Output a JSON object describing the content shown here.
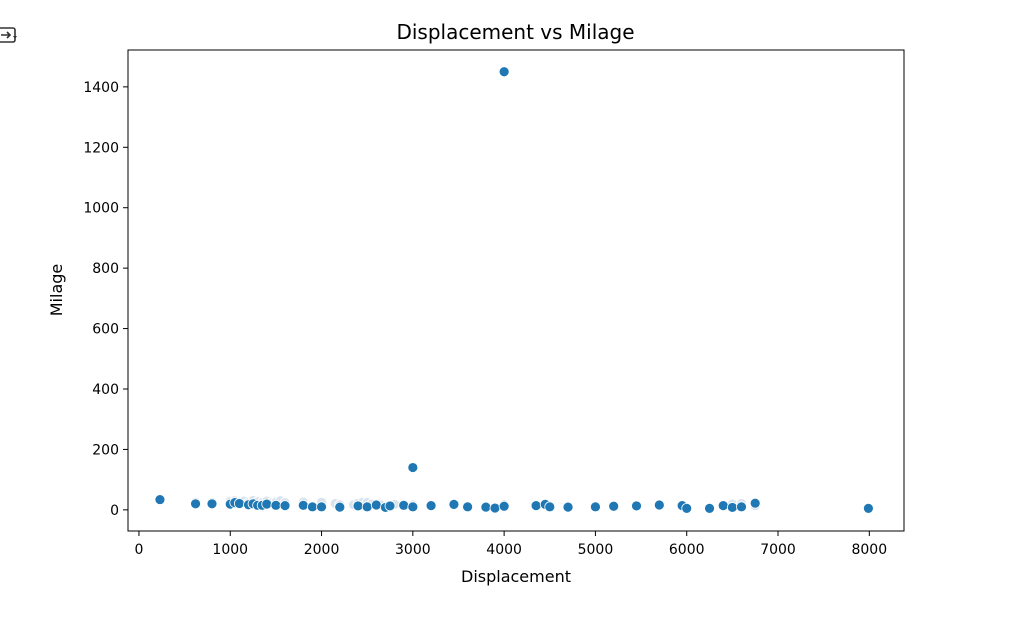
{
  "output_icon": "output-toggle-icon",
  "chart_data": {
    "type": "scatter",
    "title": "Displacement vs Milage",
    "xlabel": "Displacement",
    "ylabel": "Milage",
    "xlim": [
      -120,
      8380
    ],
    "ylim": [
      -70,
      1522
    ],
    "xticks": [
      0,
      1000,
      2000,
      3000,
      4000,
      5000,
      6000,
      7000,
      8000
    ],
    "yticks": [
      0,
      200,
      400,
      600,
      800,
      1000,
      1200,
      1400
    ],
    "grid": false,
    "legend": "none",
    "colors": {
      "point": "#1f77b4",
      "point_edge": "#ffffff",
      "faint_point": "#d9e3ee"
    },
    "faint_points": [
      {
        "x": 620,
        "y": 25
      },
      {
        "x": 800,
        "y": 25
      },
      {
        "x": 1000,
        "y": 28
      },
      {
        "x": 1050,
        "y": 30
      },
      {
        "x": 1100,
        "y": 26
      },
      {
        "x": 1150,
        "y": 29
      },
      {
        "x": 1200,
        "y": 24
      },
      {
        "x": 1250,
        "y": 31
      },
      {
        "x": 1300,
        "y": 27
      },
      {
        "x": 1350,
        "y": 24
      },
      {
        "x": 1400,
        "y": 29
      },
      {
        "x": 1450,
        "y": 23
      },
      {
        "x": 1500,
        "y": 26
      },
      {
        "x": 1550,
        "y": 30
      },
      {
        "x": 1600,
        "y": 24
      },
      {
        "x": 1800,
        "y": 26
      },
      {
        "x": 2000,
        "y": 25
      },
      {
        "x": 2150,
        "y": 21
      },
      {
        "x": 2200,
        "y": 17
      },
      {
        "x": 2350,
        "y": 17
      },
      {
        "x": 2400,
        "y": 22
      },
      {
        "x": 2450,
        "y": 25
      },
      {
        "x": 2500,
        "y": 24
      },
      {
        "x": 2550,
        "y": 19
      },
      {
        "x": 2650,
        "y": 16
      },
      {
        "x": 2800,
        "y": 18
      },
      {
        "x": 2900,
        "y": 15
      },
      {
        "x": 3000,
        "y": 16
      },
      {
        "x": 4000,
        "y": 17
      },
      {
        "x": 4500,
        "y": 14
      },
      {
        "x": 6500,
        "y": 19
      },
      {
        "x": 6600,
        "y": 21
      },
      {
        "x": 6750,
        "y": 14
      }
    ],
    "points": [
      {
        "x": 230,
        "y": 34
      },
      {
        "x": 620,
        "y": 20
      },
      {
        "x": 800,
        "y": 20
      },
      {
        "x": 1000,
        "y": 19
      },
      {
        "x": 1050,
        "y": 24
      },
      {
        "x": 1100,
        "y": 21
      },
      {
        "x": 1200,
        "y": 17
      },
      {
        "x": 1250,
        "y": 20
      },
      {
        "x": 1300,
        "y": 15
      },
      {
        "x": 1350,
        "y": 15
      },
      {
        "x": 1400,
        "y": 19
      },
      {
        "x": 1500,
        "y": 15
      },
      {
        "x": 1600,
        "y": 14
      },
      {
        "x": 1800,
        "y": 15
      },
      {
        "x": 1900,
        "y": 10
      },
      {
        "x": 2000,
        "y": 10
      },
      {
        "x": 2200,
        "y": 9
      },
      {
        "x": 2400,
        "y": 13
      },
      {
        "x": 2500,
        "y": 10
      },
      {
        "x": 2600,
        "y": 16
      },
      {
        "x": 2700,
        "y": 8
      },
      {
        "x": 2750,
        "y": 13
      },
      {
        "x": 2900,
        "y": 15
      },
      {
        "x": 3000,
        "y": 140
      },
      {
        "x": 3000,
        "y": 10
      },
      {
        "x": 3200,
        "y": 14
      },
      {
        "x": 3450,
        "y": 18
      },
      {
        "x": 3600,
        "y": 10
      },
      {
        "x": 3800,
        "y": 9
      },
      {
        "x": 3900,
        "y": 6
      },
      {
        "x": 4000,
        "y": 1450
      },
      {
        "x": 4000,
        "y": 12
      },
      {
        "x": 4350,
        "y": 14
      },
      {
        "x": 4450,
        "y": 18
      },
      {
        "x": 4500,
        "y": 10
      },
      {
        "x": 4700,
        "y": 9
      },
      {
        "x": 5000,
        "y": 10
      },
      {
        "x": 5200,
        "y": 12
      },
      {
        "x": 5450,
        "y": 13
      },
      {
        "x": 5700,
        "y": 16
      },
      {
        "x": 5950,
        "y": 14
      },
      {
        "x": 6000,
        "y": 5
      },
      {
        "x": 6250,
        "y": 5
      },
      {
        "x": 6400,
        "y": 14
      },
      {
        "x": 6500,
        "y": 8
      },
      {
        "x": 6600,
        "y": 10
      },
      {
        "x": 6750,
        "y": 22
      },
      {
        "x": 7990,
        "y": 5
      }
    ]
  }
}
